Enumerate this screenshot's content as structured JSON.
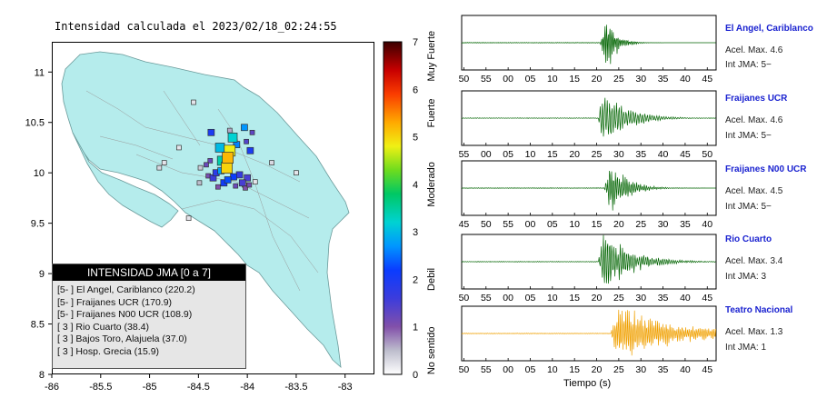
{
  "title": "Intensidad calculada el 2023/02/18_02:24:55",
  "chart_data": [
    {
      "type": "scatter",
      "title": "Intensidad calculada el 2023/02/18_02:24:55",
      "xlim": [
        -86,
        -82.7
      ],
      "ylim": [
        8,
        11.3
      ],
      "x_ticks": [
        -86,
        -85.5,
        -85,
        -84.5,
        -84,
        -83.5,
        -83
      ],
      "y_ticks": [
        8,
        8.5,
        9,
        9.5,
        10,
        10.5,
        11
      ],
      "x_tick_labels": [
        "-86",
        "-85.5",
        "-85",
        "-84.5",
        "-84",
        "-83.5",
        "-83"
      ],
      "y_tick_labels": [
        "8",
        "8.5",
        "9",
        "9.5",
        "10",
        "10.5",
        "11"
      ],
      "colorbar": {
        "range": [
          0,
          7
        ],
        "ticks": [
          "0",
          "1",
          "2",
          "3",
          "4",
          "5",
          "6",
          "7"
        ],
        "labels": [
          "No sentido",
          "Debil",
          "Moderado",
          "Fuerte",
          "Muy Fuerte"
        ]
      },
      "stations": [
        {
          "lon": -84.2,
          "lat": 10.15,
          "intensity": 5.2
        },
        {
          "lon": -84.21,
          "lat": 10.05,
          "intensity": 5.0
        },
        {
          "lon": -84.18,
          "lat": 10.22,
          "intensity": 4.8
        },
        {
          "lon": -84.26,
          "lat": 10.12,
          "intensity": 3.4
        },
        {
          "lon": -84.15,
          "lat": 10.35,
          "intensity": 3.2
        },
        {
          "lon": -84.28,
          "lat": 10.25,
          "intensity": 3.0
        },
        {
          "lon": -84.27,
          "lat": 10.02,
          "intensity": 2.8
        },
        {
          "lon": -84.03,
          "lat": 10.45,
          "intensity": 2.7
        },
        {
          "lon": -84.11,
          "lat": 10.28,
          "intensity": 2.6
        },
        {
          "lon": -84.2,
          "lat": 9.93,
          "intensity": 2.3
        },
        {
          "lon": -84.14,
          "lat": 9.96,
          "intensity": 2.2
        },
        {
          "lon": -84.24,
          "lat": 9.9,
          "intensity": 2.1
        },
        {
          "lon": -84.37,
          "lat": 10.4,
          "intensity": 2.0
        },
        {
          "lon": -83.97,
          "lat": 10.22,
          "intensity": 2.0
        },
        {
          "lon": -84.32,
          "lat": 10.0,
          "intensity": 1.8
        },
        {
          "lon": -84.08,
          "lat": 9.98,
          "intensity": 1.7
        },
        {
          "lon": -84.35,
          "lat": 9.95,
          "intensity": 1.6
        },
        {
          "lon": -84.0,
          "lat": 9.95,
          "intensity": 1.5
        },
        {
          "lon": -84.05,
          "lat": 9.9,
          "intensity": 1.5
        },
        {
          "lon": -84.01,
          "lat": 10.31,
          "intensity": 1.4
        },
        {
          "lon": -83.95,
          "lat": 10.4,
          "intensity": 1.3
        },
        {
          "lon": -84.38,
          "lat": 10.12,
          "intensity": 1.2
        },
        {
          "lon": -84.42,
          "lat": 10.08,
          "intensity": 1.2
        },
        {
          "lon": -84.4,
          "lat": 9.97,
          "intensity": 1.1
        },
        {
          "lon": -84.12,
          "lat": 9.87,
          "intensity": 1.2
        },
        {
          "lon": -84.02,
          "lat": 9.85,
          "intensity": 1.0
        },
        {
          "lon": -83.98,
          "lat": 9.88,
          "intensity": 1.1
        },
        {
          "lon": -84.3,
          "lat": 9.86,
          "intensity": 1.0
        },
        {
          "lon": -84.18,
          "lat": 10.42,
          "intensity": 0.6
        },
        {
          "lon": -84.48,
          "lat": 10.05,
          "intensity": 0.4
        },
        {
          "lon": -84.49,
          "lat": 9.9,
          "intensity": 0.5
        },
        {
          "lon": -83.75,
          "lat": 10.1,
          "intensity": 0.3
        },
        {
          "lon": -84.9,
          "lat": 10.05,
          "intensity": 0.3
        },
        {
          "lon": -84.7,
          "lat": 10.25,
          "intensity": 0.2
        },
        {
          "lon": -84.55,
          "lat": 10.7,
          "intensity": 0.2
        },
        {
          "lon": -83.5,
          "lat": 10.0,
          "intensity": 0.2
        },
        {
          "lon": -84.85,
          "lat": 10.1,
          "intensity": 0.2
        },
        {
          "lon": -84.03,
          "lat": 9.88,
          "intensity": 0.2
        },
        {
          "lon": -84.6,
          "lat": 9.55,
          "intensity": 0.2
        },
        {
          "lon": -83.92,
          "lat": 9.91,
          "intensity": 0.2
        }
      ],
      "legend": {
        "header": "INTENSIDAD JMA [0 a 7]",
        "entries": [
          "[5- ]  El Angel, Cariblanco (220.2)",
          "[5- ]  Fraijanes UCR (170.9)",
          "[5- ]  Fraijanes N00 UCR (108.9)",
          "[ 3 ]  Rio Cuarto (38.4)",
          "[ 3 ]  Bajos Toro, Alajuela (37.0)",
          "[ 3 ]  Hosp. Grecia (15.9)"
        ]
      }
    },
    {
      "type": "line",
      "xlabel": "Tiempo (s)",
      "series": [
        {
          "name": "El Angel, Cariblanco",
          "acel_label": "Acel. Max. 4.6",
          "jma_label": "Int JMA: 5−",
          "color": "#006400",
          "x_ticks": [
            "50",
            "55",
            "00",
            "05",
            "10",
            "15",
            "20",
            "25",
            "30",
            "35",
            "40",
            "45"
          ],
          "tick_first": 50,
          "onset": 15.5,
          "amplitude": 1.0,
          "decay": 2.2,
          "freq": 2.6
        },
        {
          "name": "Fraijanes UCR",
          "acel_label": "Acel. Max. 4.6",
          "jma_label": "Int JMA: 5−",
          "color": "#006400",
          "x_ticks": [
            "55",
            "00",
            "05",
            "10",
            "15",
            "20",
            "25",
            "30",
            "35",
            "40",
            "45",
            "50"
          ],
          "tick_first": 55,
          "onset": 15.0,
          "amplitude": 0.95,
          "decay": 5.0,
          "freq": 1.8
        },
        {
          "name": "Fraijanes N00 UCR",
          "acel_label": "Acel. Max. 4.5",
          "jma_label": "Int JMA: 5−",
          "color": "#006400",
          "x_ticks": [
            "45",
            "50",
            "55",
            "00",
            "05",
            "10",
            "15",
            "20",
            "25",
            "30",
            "35",
            "40"
          ],
          "tick_first": 45,
          "onset": 16.5,
          "amplitude": 0.95,
          "decay": 3.5,
          "freq": 2.2
        },
        {
          "name": "Rio Cuarto",
          "acel_label": "Acel. Max. 3.4",
          "jma_label": "Int JMA: 3",
          "color": "#006400",
          "x_ticks": [
            "50",
            "55",
            "00",
            "05",
            "10",
            "15",
            "20",
            "25",
            "30",
            "35",
            "40",
            "45"
          ],
          "tick_first": 50,
          "onset": 15.0,
          "amplitude": 1.0,
          "decay": 6.0,
          "freq": 2.0
        },
        {
          "name": "Teatro Nacional",
          "acel_label": "Acel. Max. 1.3",
          "jma_label": "Int JMA: 1",
          "color": "#f0a000",
          "x_ticks": [
            "50",
            "55",
            "00",
            "05",
            "10",
            "15",
            "20",
            "25",
            "30",
            "35",
            "40",
            "45"
          ],
          "tick_first": 50,
          "onset": 18.0,
          "amplitude": 0.85,
          "decay": 14.0,
          "freq": 2.4
        }
      ]
    }
  ]
}
